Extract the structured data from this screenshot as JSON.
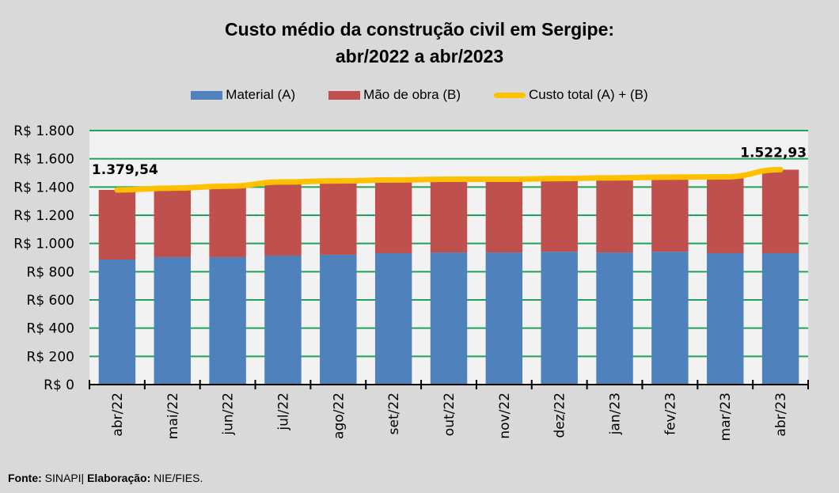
{
  "chart_data": {
    "type": "bar",
    "stacked": true,
    "title": "Custo médio da construção civil em Sergipe:",
    "subtitle": "abr/2022 a abr/2023",
    "xlabel": "",
    "ylabel": "",
    "ylim": [
      0,
      1800
    ],
    "yticks": [
      0,
      200,
      400,
      600,
      800,
      1000,
      1200,
      1400,
      1600,
      1800
    ],
    "ytick_labels": [
      "R$ 0",
      "R$ 200",
      "R$ 400",
      "R$ 600",
      "R$ 800",
      "R$ 1.000",
      "R$ 1.200",
      "R$ 1.400",
      "R$ 1.600",
      "R$ 1.800"
    ],
    "grid": true,
    "legend_position": "top",
    "categories": [
      "abr/22",
      "mai/22",
      "jun/22",
      "jul/22",
      "ago/22",
      "set/22",
      "out/22",
      "nov/22",
      "dez/22",
      "jan/23",
      "fev/23",
      "mar/23",
      "abr/23"
    ],
    "series": [
      {
        "name": "Material (A)",
        "type": "bar",
        "color": "#4f81bd",
        "values": [
          886,
          903,
          903,
          914,
          920,
          931,
          936,
          936,
          941,
          936,
          941,
          931,
          931
        ]
      },
      {
        "name": "Mão de obra (B)",
        "type": "bar",
        "color": "#c0504d",
        "values": [
          493.54,
          489,
          503,
          522,
          523,
          519,
          519,
          519,
          519,
          529,
          529,
          541,
          591.93
        ]
      },
      {
        "name": "Custo total (A) + (B)",
        "type": "line",
        "color": "#ffc000",
        "values": [
          1379.54,
          1392,
          1406,
          1436,
          1443,
          1450,
          1455,
          1455,
          1460,
          1465,
          1470,
          1472,
          1522.93
        ]
      }
    ],
    "annotations": [
      {
        "category": "abr/22",
        "text": "1.379,54"
      },
      {
        "category": "abr/23",
        "text": "1.522,93"
      }
    ]
  },
  "legend": {
    "material": "Material (A)",
    "labor": "Mão de obra (B)",
    "total": "Custo total (A) + (B)"
  },
  "footer": {
    "source_label": "Fonte:",
    "source_value": "SINAPI|",
    "credit_label": "Elaboração:",
    "credit_value": "NIE/FIES."
  },
  "colors": {
    "material": "#4f81bd",
    "labor": "#c0504d",
    "total": "#ffc000",
    "grid": "#21a15a",
    "plot_bg": "#f2f2f2",
    "page_bg": "#d9d9d9"
  }
}
